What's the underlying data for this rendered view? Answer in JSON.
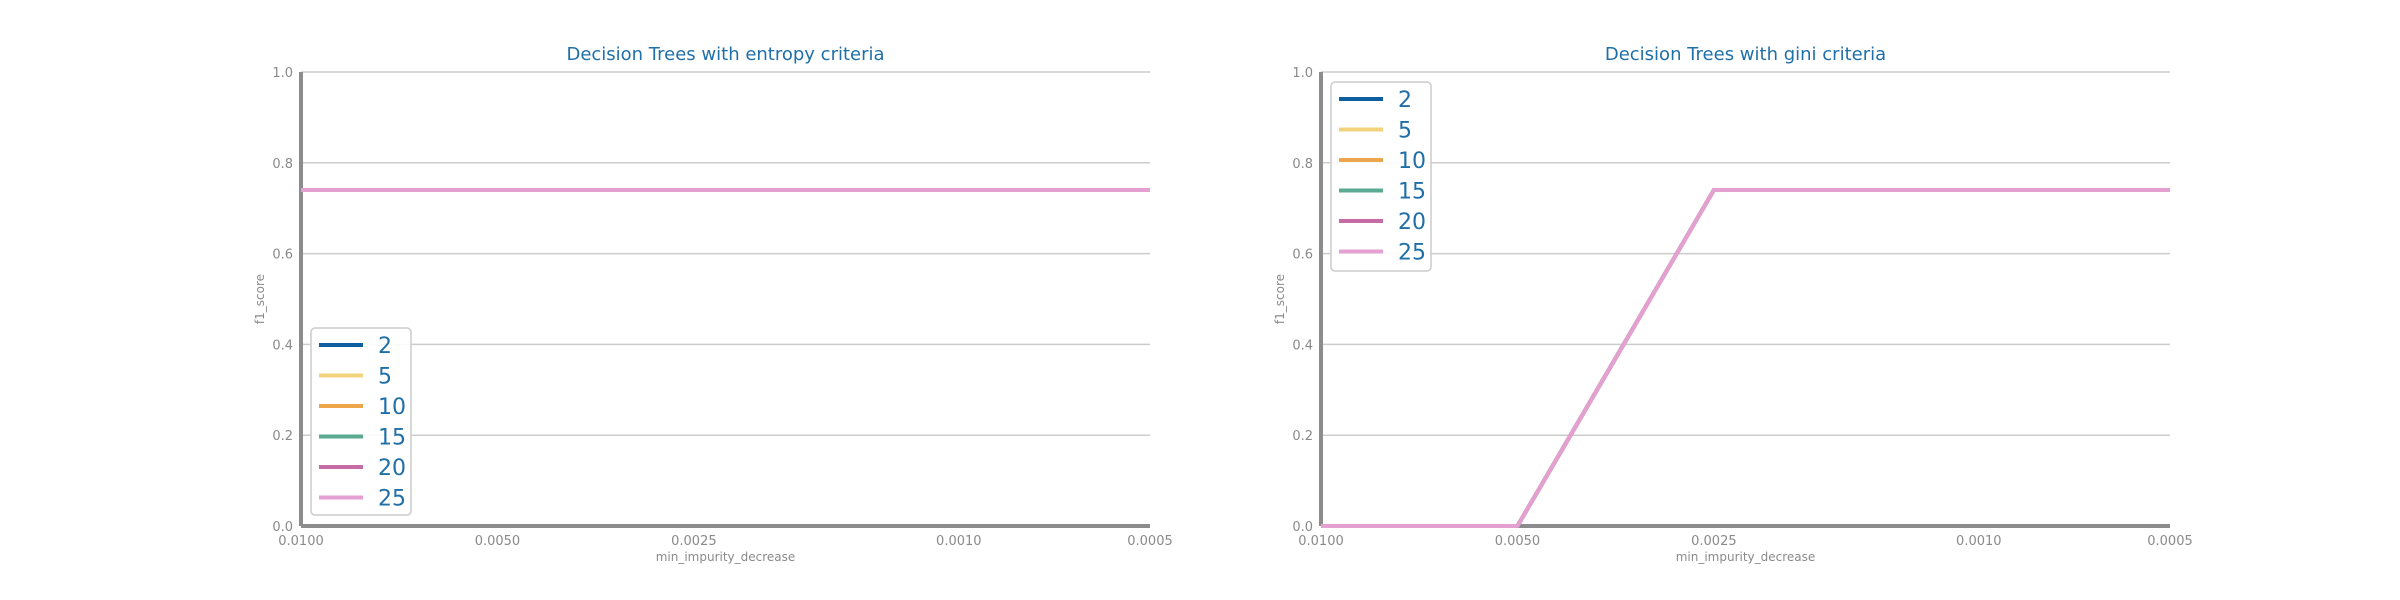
{
  "chart_data": [
    {
      "type": "line",
      "title": "Decision Trees with entropy criteria",
      "xlabel": "min_impurity_decrease",
      "ylabel": "f1_score",
      "ylim": [
        0,
        1
      ],
      "x_ticks": [
        "0.0100",
        "0.0050",
        "0.0025",
        "0.0010",
        "0.0005"
      ],
      "y_ticks": [
        "0.0",
        "0.2",
        "0.4",
        "0.6",
        "0.8",
        "1.0"
      ],
      "grid": true,
      "legend_position": "lower-left",
      "x": [
        0.01,
        0.005,
        0.0025,
        0.001,
        0.0005
      ],
      "series": [
        {
          "name": "2",
          "color": "#0f5fa0",
          "values": [
            0.74,
            0.74,
            0.74,
            0.74,
            0.74
          ]
        },
        {
          "name": "5",
          "color": "#f2d27c",
          "values": [
            0.74,
            0.74,
            0.74,
            0.74,
            0.74
          ]
        },
        {
          "name": "10",
          "color": "#eea64a",
          "values": [
            0.74,
            0.74,
            0.74,
            0.74,
            0.74
          ]
        },
        {
          "name": "15",
          "color": "#5aab92",
          "values": [
            0.74,
            0.74,
            0.74,
            0.74,
            0.74
          ]
        },
        {
          "name": "20",
          "color": "#c56ba5",
          "values": [
            0.74,
            0.74,
            0.74,
            0.74,
            0.74
          ]
        },
        {
          "name": "25",
          "color": "#e3a0d0",
          "values": [
            0.74,
            0.74,
            0.74,
            0.74,
            0.74
          ]
        }
      ]
    },
    {
      "type": "line",
      "title": "Decision Trees with gini criteria",
      "xlabel": "min_impurity_decrease",
      "ylabel": "f1_score",
      "ylim": [
        0,
        1
      ],
      "x_ticks": [
        "0.0100",
        "0.0050",
        "0.0025",
        "0.0010",
        "0.0005"
      ],
      "y_ticks": [
        "0.0",
        "0.2",
        "0.4",
        "0.6",
        "0.8",
        "1.0"
      ],
      "grid": true,
      "legend_position": "upper-left",
      "x": [
        0.01,
        0.005,
        0.0025,
        0.001,
        0.0005
      ],
      "series": [
        {
          "name": "2",
          "color": "#0f5fa0",
          "values": [
            0,
            0,
            0.74,
            0.74,
            0.74
          ]
        },
        {
          "name": "5",
          "color": "#f2d27c",
          "values": [
            0,
            0,
            0.74,
            0.74,
            0.74
          ]
        },
        {
          "name": "10",
          "color": "#eea64a",
          "values": [
            0,
            0,
            0.74,
            0.74,
            0.74
          ]
        },
        {
          "name": "15",
          "color": "#5aab92",
          "values": [
            0,
            0,
            0.74,
            0.74,
            0.74
          ]
        },
        {
          "name": "20",
          "color": "#c56ba5",
          "values": [
            0,
            0,
            0.74,
            0.74,
            0.74
          ]
        },
        {
          "name": "25",
          "color": "#e3a0d0",
          "values": [
            0,
            0,
            0.74,
            0.74,
            0.74
          ]
        }
      ]
    }
  ]
}
